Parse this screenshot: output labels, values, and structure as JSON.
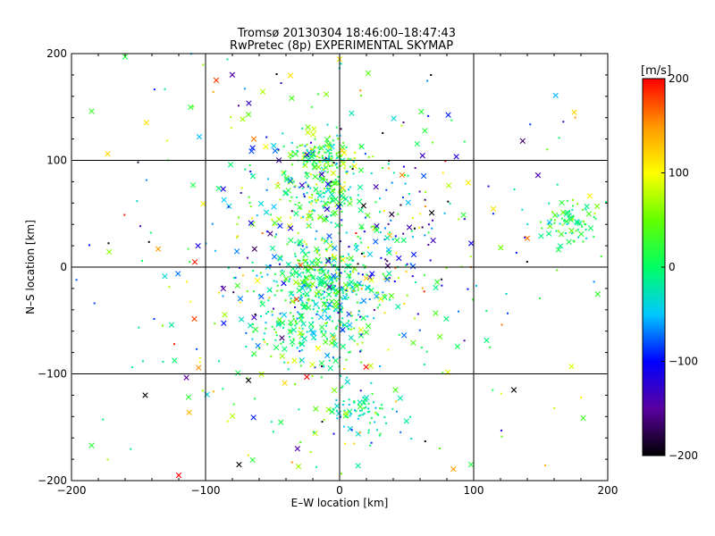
{
  "chart_data": {
    "type": "scatter",
    "title": "Tromsø 20130304 18:46:00–18:47:43",
    "subtitle": "RwPretec (8p) EXPERIMENTAL SKYMAP",
    "xlabel": "E–W location [km]",
    "ylabel": "N–S location [km]",
    "xlim": [
      -200,
      200
    ],
    "ylim": [
      -200,
      200
    ],
    "xticks": [
      "−200",
      "−100",
      "0",
      "100",
      "200"
    ],
    "yticks": [
      "−200",
      "−100",
      "0",
      "100",
      "200"
    ],
    "grid": true,
    "marker_types": [
      "dot",
      "x"
    ],
    "colorbar": {
      "label": "[m/s]",
      "range": [
        -200,
        200
      ],
      "ticks": [
        "−200",
        "−100",
        "0",
        "100",
        "200"
      ],
      "colors": [
        "#000000",
        "#5a00a0",
        "#0000ff",
        "#00c8ff",
        "#00ff64",
        "#64ff00",
        "#ffff00",
        "#ff9600",
        "#ff0000"
      ]
    },
    "clusters": [
      {
        "center": [
          -10,
          105
        ],
        "spread": [
          12,
          8
        ],
        "count": 130,
        "v_mean": 20,
        "v_sd": 40
      },
      {
        "center": [
          -15,
          70
        ],
        "spread": [
          12,
          15
        ],
        "count": 130,
        "v_mean": 10,
        "v_sd": 45
      },
      {
        "center": [
          -10,
          -15
        ],
        "spread": [
          20,
          22
        ],
        "count": 320,
        "v_mean": 0,
        "v_sd": 40
      },
      {
        "center": [
          -25,
          -60
        ],
        "spread": [
          22,
          20
        ],
        "count": 150,
        "v_mean": 0,
        "v_sd": 40
      },
      {
        "center": [
          15,
          -135
        ],
        "spread": [
          12,
          10
        ],
        "count": 70,
        "v_mean": -10,
        "v_sd": 30
      },
      {
        "center": [
          175,
          45
        ],
        "spread": [
          12,
          12
        ],
        "count": 80,
        "v_mean": 15,
        "v_sd": 35
      },
      {
        "center": [
          -10,
          0
        ],
        "spread": [
          65,
          85
        ],
        "count": 420,
        "v_mean": 0,
        "v_sd": 80
      },
      {
        "center": [
          0,
          0
        ],
        "spread": [
          120,
          120
        ],
        "count": 180,
        "v_mean": 0,
        "v_sd": 110
      },
      {
        "center": [
          30,
          40
        ],
        "spread": [
          35,
          45
        ],
        "count": 60,
        "v_mean": -90,
        "v_sd": 80
      }
    ],
    "outliers": [
      {
        "x": -173,
        "y": 106,
        "v": 120
      },
      {
        "x": -92,
        "y": 175,
        "v": 180
      },
      {
        "x": 140,
        "y": 27,
        "v": 160
      },
      {
        "x": -120,
        "y": -195,
        "v": 200
      },
      {
        "x": 148,
        "y": 86,
        "v": -140
      },
      {
        "x": 175,
        "y": 145,
        "v": 120
      },
      {
        "x": -145,
        "y": -120,
        "v": -200
      },
      {
        "x": -68,
        "y": -106,
        "v": -200
      },
      {
        "x": -75,
        "y": -185,
        "v": -200
      },
      {
        "x": 130,
        "y": -115,
        "v": -200
      },
      {
        "x": 173,
        "y": -93,
        "v": 90
      },
      {
        "x": -185,
        "y": 146,
        "v": 30
      },
      {
        "x": -185,
        "y": -167,
        "v": 20
      },
      {
        "x": -160,
        "y": 197,
        "v": 20
      },
      {
        "x": 98,
        "y": -185,
        "v": 20
      }
    ]
  }
}
